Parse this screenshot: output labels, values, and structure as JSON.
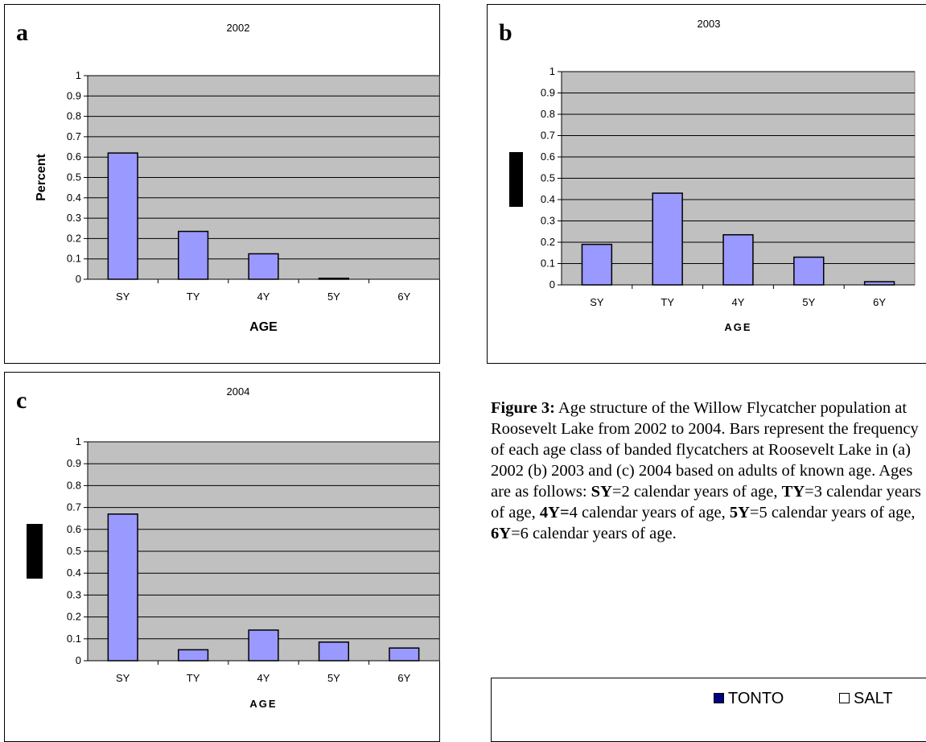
{
  "chart_data": [
    {
      "type": "bar",
      "panel": "a",
      "title": "2002",
      "categories": [
        "SY",
        "TY",
        "4Y",
        "5Y",
        "6Y"
      ],
      "values": [
        0.62,
        0.235,
        0.125,
        0.005,
        0
      ],
      "ylabel": "Percent",
      "xlabel": "AGE",
      "ylim": [
        0,
        1
      ],
      "yticks": [
        "0",
        "0.1",
        "0.2",
        "0.3",
        "0.4",
        "0.5",
        "0.6",
        "0.7",
        "0.8",
        "0.9",
        "1"
      ],
      "grid": true
    },
    {
      "type": "bar",
      "panel": "b",
      "title": "2003",
      "categories": [
        "SY",
        "TY",
        "4Y",
        "5Y",
        "6Y"
      ],
      "values": [
        0.19,
        0.43,
        0.235,
        0.13,
        0.015
      ],
      "ylabel": "",
      "xlabel": "AGE",
      "ylim": [
        0,
        1
      ],
      "yticks": [
        "0",
        "0.1",
        "0.2",
        "0.3",
        "0.4",
        "0.5",
        "0.6",
        "0.7",
        "0.8",
        "0.9",
        "1"
      ],
      "grid": true
    },
    {
      "type": "bar",
      "panel": "c",
      "title": "2004",
      "categories": [
        "SY",
        "TY",
        "4Y",
        "5Y",
        "6Y"
      ],
      "values": [
        0.67,
        0.05,
        0.14,
        0.085,
        0.058
      ],
      "ylabel": "",
      "xlabel": "AGE",
      "ylim": [
        0,
        1
      ],
      "yticks": [
        "0",
        "0.1",
        "0.2",
        "0.3",
        "0.4",
        "0.5",
        "0.6",
        "0.7",
        "0.8",
        "0.9",
        "1"
      ],
      "grid": true
    }
  ],
  "colors": {
    "plot_bg": "#c0c0c0",
    "bar_fill": "#9999ff",
    "bar_stroke": "#000000",
    "tonto_swatch": "#000080",
    "salt_swatch": "#ffffff"
  },
  "caption": {
    "label": "Figure 3:",
    "text": " Age structure of the Willow Flycatcher population at Roosevelt Lake from 2002 to 2004. Bars represent the frequency of each age class of banded flycatchers at Roosevelt Lake in (a) 2002 (b) 2003 and (c) 2004 based on adults of known age.  Ages are as follows: ",
    "defs": [
      {
        "abbr": "SY",
        "desc": "=2 calendar years of age, "
      },
      {
        "abbr": "TY",
        "desc": "=3 calendar years of age, "
      },
      {
        "abbr": "4Y=",
        "desc": "4 calendar years of age, "
      },
      {
        "abbr": "5Y",
        "desc": "=5 calendar years of age, "
      },
      {
        "abbr": "6Y",
        "desc": "=6 calendar years of age."
      }
    ]
  },
  "legend": {
    "items": [
      {
        "label": "TONTO"
      },
      {
        "label": "SALT"
      }
    ]
  }
}
